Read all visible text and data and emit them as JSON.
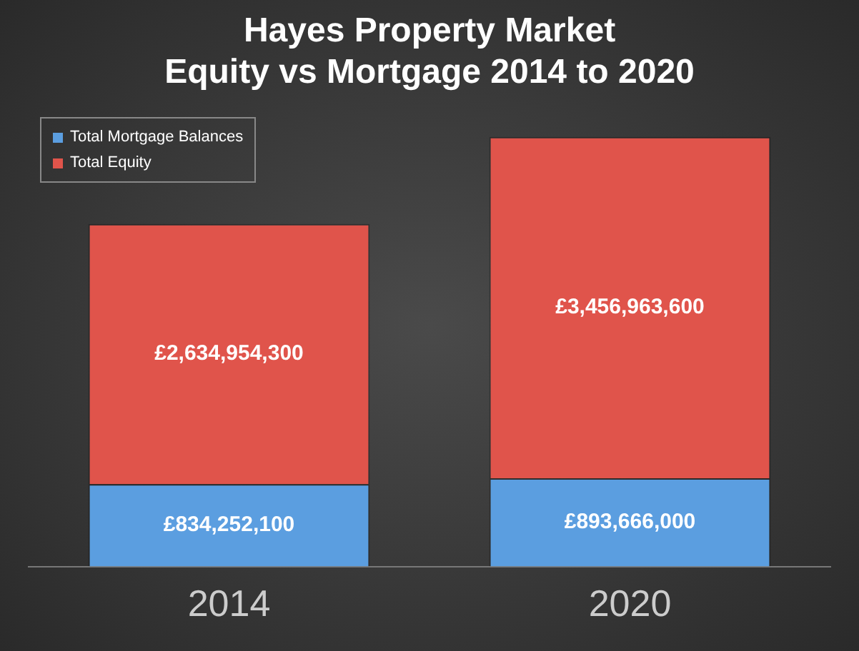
{
  "chart_data": {
    "type": "bar",
    "title": "Hayes Property Market\nEquity vs Mortgage 2014 to 2020",
    "categories": [
      "2014",
      "2020"
    ],
    "stacked": true,
    "series": [
      {
        "name": "Total Mortgage Balances",
        "color": "#5b9ee0",
        "values": [
          834252100,
          893666000
        ],
        "value_labels": [
          "£834,252,100",
          "£893,666,000"
        ]
      },
      {
        "name": "Total Equity",
        "color": "#e0544b",
        "values": [
          2634954300,
          3456963600
        ],
        "value_labels": [
          "£2,634,954,300",
          "£3,456,963,600"
        ]
      }
    ],
    "legend": "top left",
    "tick_labels": "x"
  }
}
